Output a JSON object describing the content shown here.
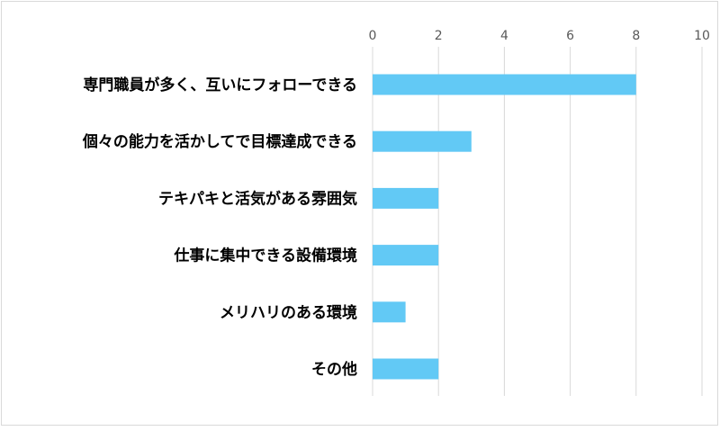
{
  "chart_data": {
    "type": "bar",
    "orientation": "horizontal",
    "categories": [
      "専門職員が多く、互いにフォローできる",
      "個々の能力を活かしてで目標達成できる",
      "テキパキと活気がある雰囲気",
      "仕事に集中できる設備環境",
      "メリハリのある環境",
      "その他"
    ],
    "values": [
      8,
      3,
      2,
      2,
      1,
      2
    ],
    "xlim": [
      0,
      10
    ],
    "xticks": [
      0,
      2,
      4,
      6,
      8,
      10
    ],
    "tick_labels": [
      "0",
      "2",
      "4",
      "6",
      "8",
      "10"
    ],
    "grid": true,
    "axis_position": "top",
    "bar_color": "#62c9f5",
    "grid_color": "#d9d9d9"
  }
}
